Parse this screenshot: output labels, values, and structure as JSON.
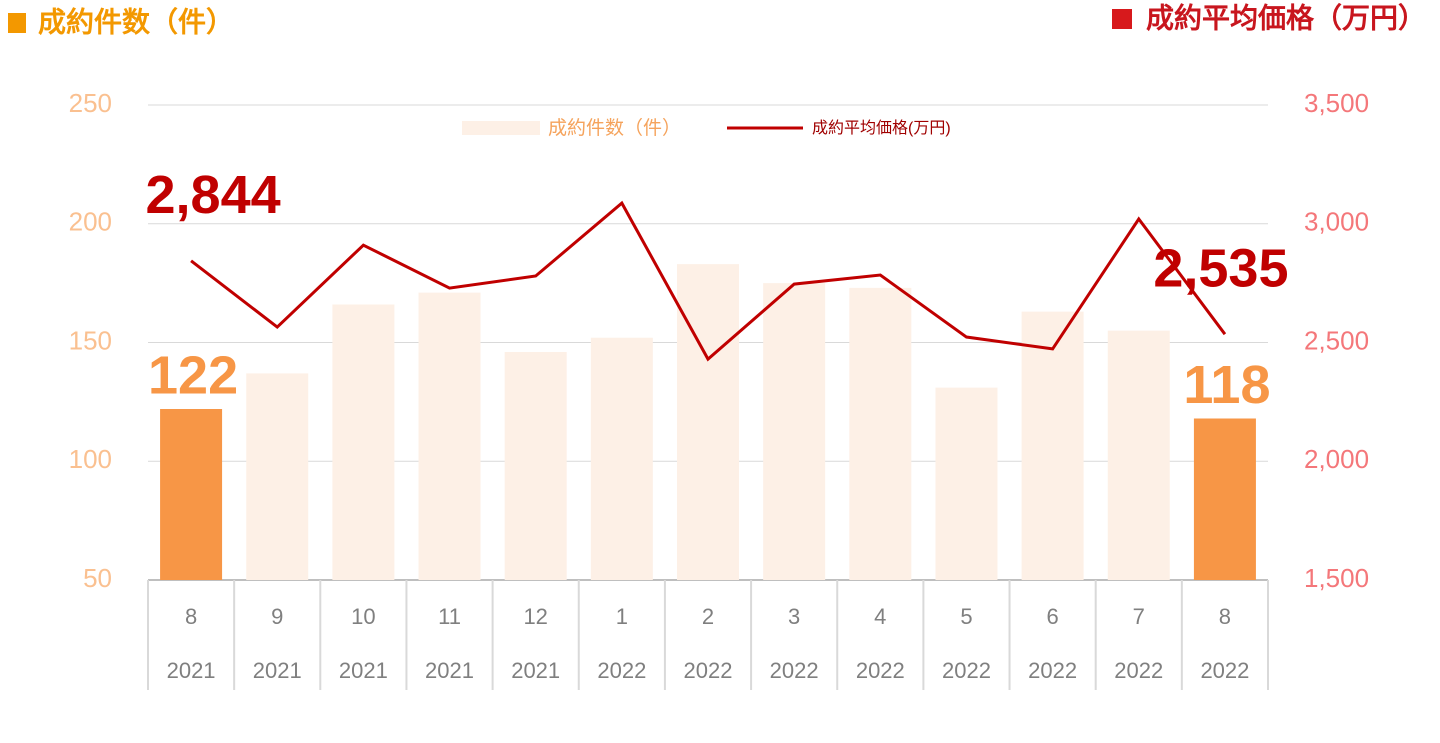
{
  "chart_data": {
    "type": "bar_line",
    "y_label": "成約件数（件）",
    "y2_label": "成約平均価格（万円）",
    "categories": [
      [
        "8",
        "2021"
      ],
      [
        "9",
        "2021"
      ],
      [
        "10",
        "2021"
      ],
      [
        "11",
        "2021"
      ],
      [
        "12",
        "2021"
      ],
      [
        "1",
        "2022"
      ],
      [
        "2",
        "2022"
      ],
      [
        "3",
        "2022"
      ],
      [
        "4",
        "2022"
      ],
      [
        "5",
        "2022"
      ],
      [
        "6",
        "2022"
      ],
      [
        "7",
        "2022"
      ],
      [
        "8",
        "2022"
      ]
    ],
    "series": [
      {
        "name": "成約件数（件）",
        "type": "bar",
        "color": "#fdf0e6",
        "highlight_color": "#f79646",
        "values": [
          122,
          137,
          166,
          171,
          146,
          152,
          183,
          175,
          173,
          131,
          163,
          155,
          118
        ],
        "value_labels": [
          "122",
          null,
          null,
          null,
          null,
          null,
          null,
          null,
          null,
          null,
          null,
          null,
          "118"
        ]
      },
      {
        "name": "成約平均価格(万円)",
        "type": "line",
        "axis": "y2",
        "color": "#c00000",
        "values": [
          2844,
          2565,
          2910,
          2729,
          2780,
          3087,
          2430,
          2746,
          2784,
          2523,
          2473,
          3020,
          2535
        ],
        "value_labels": [
          "2,844",
          null,
          null,
          null,
          null,
          null,
          null,
          null,
          null,
          null,
          null,
          null,
          "2,535"
        ]
      }
    ],
    "ylim": [
      50,
      250
    ],
    "yticks": [
      50,
      100,
      150,
      200,
      250
    ],
    "y2lim": [
      1500,
      3500
    ],
    "y2ticks": [
      {
        "value": 1500,
        "label": "1,500"
      },
      {
        "value": 2000,
        "label": "2,000"
      },
      {
        "value": 2500,
        "label": "2,500"
      },
      {
        "value": 3000,
        "label": "3,000"
      },
      {
        "value": 3500,
        "label": "3,500"
      }
    ],
    "grid": true
  }
}
